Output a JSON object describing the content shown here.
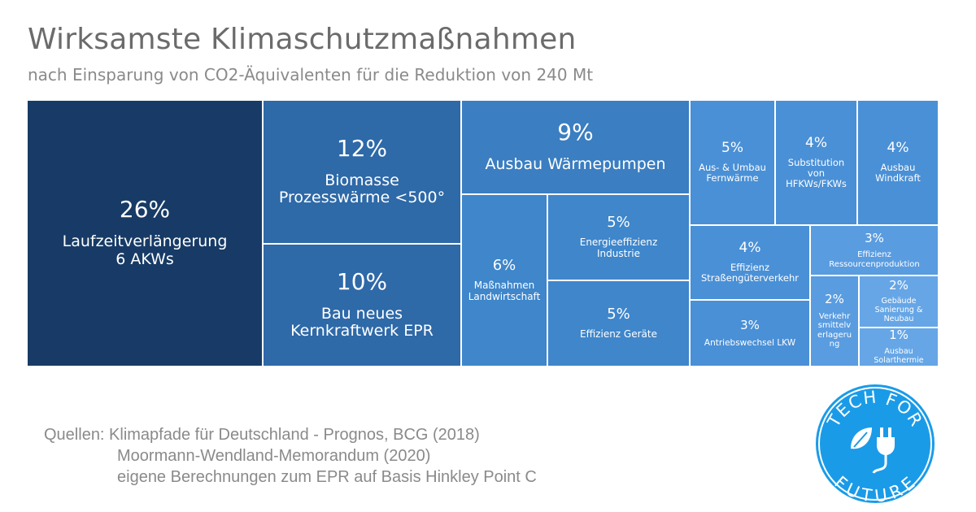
{
  "title": "Wirksamste Klimaschutzmaßnahmen",
  "subtitle": "nach Einsparung von CO2-Äquivalenten für die Reduktion von 240 Mt",
  "chart_data": {
    "type": "treemap",
    "unit": "%",
    "items": [
      {
        "pct": "26%",
        "value": 26,
        "label": [
          "Laufzeitverlängerung",
          "6 AKWs"
        ],
        "color": "#173b66"
      },
      {
        "pct": "12%",
        "value": 12,
        "label": [
          "Biomasse",
          "Prozesswärme <500°"
        ],
        "color": "#2e69a8"
      },
      {
        "pct": "10%",
        "value": 10,
        "label": [
          "Bau neues",
          "Kernkraftwerk EPR"
        ],
        "color": "#2e69a8"
      },
      {
        "pct": "9%",
        "value": 9,
        "label": [
          "Ausbau Wärmepumpen"
        ],
        "color": "#3b7ec1"
      },
      {
        "pct": "6%",
        "value": 6,
        "label": [
          "Maßnahmen",
          "Landwirtschaft"
        ],
        "color": "#3f86cb"
      },
      {
        "pct": "5%",
        "value": 5,
        "label": [
          "Energieeffizienz",
          "Industrie"
        ],
        "color": "#3f86cb"
      },
      {
        "pct": "5%",
        "value": 5,
        "label": [
          "Effizienz Geräte"
        ],
        "color": "#3f86cb"
      },
      {
        "pct": "5%",
        "value": 5,
        "label": [
          "Aus- & Umbau",
          "Fernwärme"
        ],
        "color": "#4a90d6"
      },
      {
        "pct": "4%",
        "value": 4,
        "label": [
          "Substitution",
          "von",
          "HFKWs/FKWs"
        ],
        "color": "#4a90d6"
      },
      {
        "pct": "4%",
        "value": 4,
        "label": [
          "Ausbau",
          "Windkraft"
        ],
        "color": "#4a90d6"
      },
      {
        "pct": "4%",
        "value": 4,
        "label": [
          "Effizienz",
          "Straßengüterverkehr"
        ],
        "color": "#4a90d6"
      },
      {
        "pct": "3%",
        "value": 3,
        "label": [
          "Effizienz",
          "Ressourcenproduktion"
        ],
        "color": "#5a9ce0"
      },
      {
        "pct": "3%",
        "value": 3,
        "label": [
          "Antriebswechsel LKW"
        ],
        "color": "#4a90d6"
      },
      {
        "pct": "2%",
        "value": 2,
        "label": [
          "Verkehr",
          "smittelv",
          "erlageru",
          "ng"
        ],
        "color": "#5a9ce0"
      },
      {
        "pct": "2%",
        "value": 2,
        "label": [
          "Gebäude",
          "Sanierung &",
          "Neubau"
        ],
        "color": "#66a6e6"
      },
      {
        "pct": "1%",
        "value": 1,
        "label": [
          "Ausbau",
          "Solarthermie"
        ],
        "color": "#66a6e6"
      }
    ]
  },
  "sources": {
    "line1": "Quellen: Klimapfade für Deutschland - Prognos, BCG (2018)",
    "line2": "Moormann-Wendland-Memorandum (2020)",
    "line3": "eigene Berechnungen zum EPR auf Basis Hinkley Point C"
  },
  "logo": {
    "top_text": "TECH FOR",
    "bottom_text": "FUTURE",
    "icon": "plug-leaf-icon",
    "color": "#1a9be8"
  }
}
